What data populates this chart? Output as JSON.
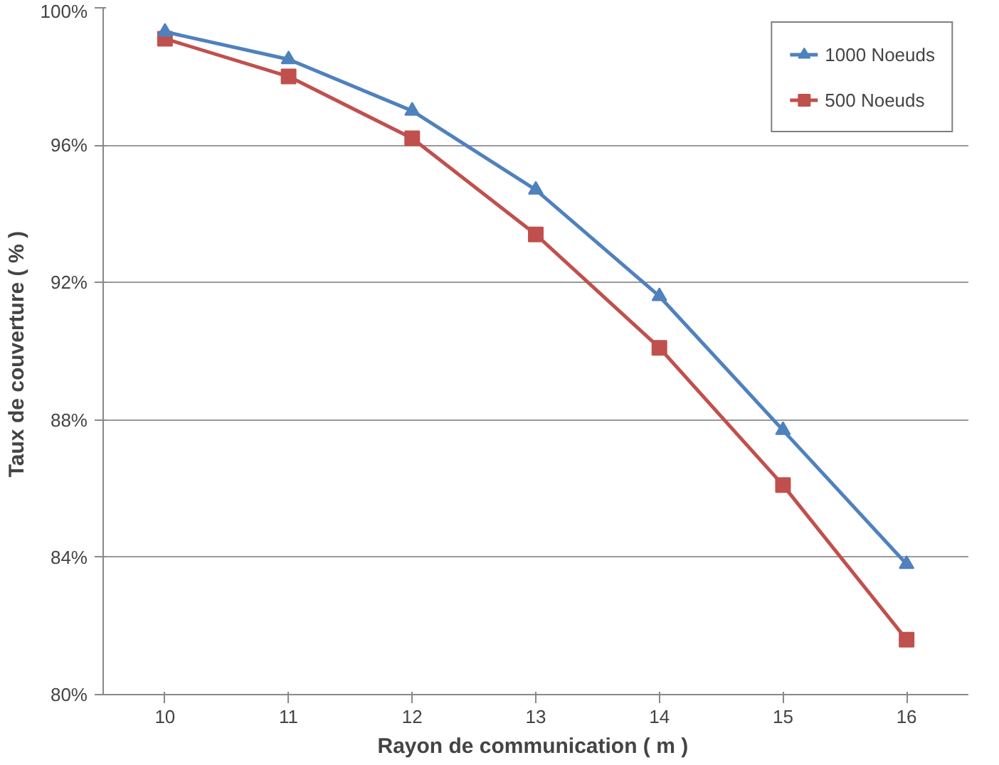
{
  "chart_data": {
    "type": "line",
    "xlabel": "Rayon de communication  ( m )",
    "ylabel": "Taux  de couverture ( % )",
    "categories": [
      "10",
      "11",
      "12",
      "13",
      "14",
      "15",
      "16"
    ],
    "series": [
      {
        "name": "1000 Noeuds",
        "color": "#4f81bd",
        "marker": "triangle",
        "values": [
          99.3,
          98.5,
          97.0,
          94.7,
          91.6,
          87.7,
          83.8
        ]
      },
      {
        "name": "500 Noeuds",
        "color": "#c0504d",
        "marker": "square",
        "values": [
          99.1,
          98.0,
          96.2,
          93.4,
          90.1,
          86.1,
          81.6
        ]
      }
    ],
    "ylim": [
      80,
      100
    ],
    "yticks": [
      {
        "value": 80,
        "label": "80%"
      },
      {
        "value": 84,
        "label": "84%"
      },
      {
        "value": 88,
        "label": "88%"
      },
      {
        "value": 92,
        "label": "92%"
      },
      {
        "value": 96,
        "label": "96%"
      },
      {
        "value": 100,
        "label": "100%"
      }
    ],
    "grid": "y",
    "legend": "top right",
    "line_style": "solid"
  }
}
